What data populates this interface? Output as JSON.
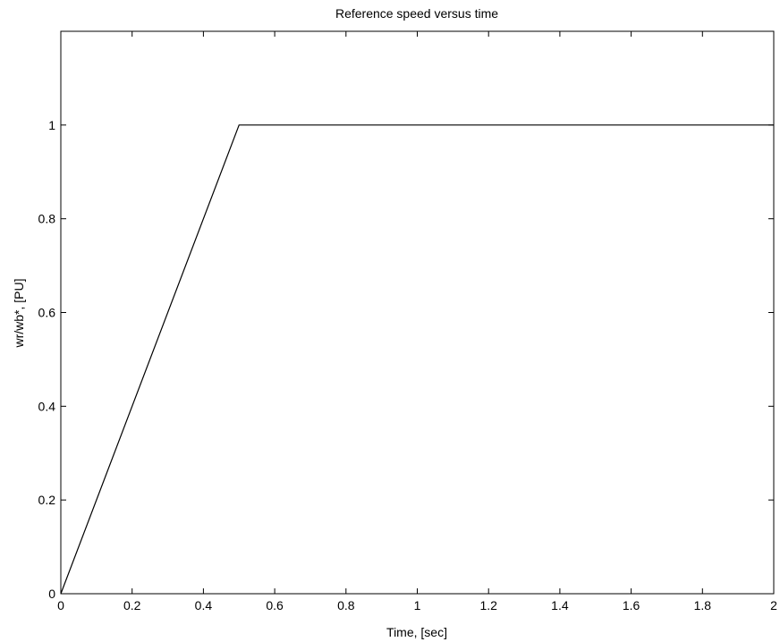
{
  "chart_data": {
    "type": "line",
    "title": "Reference speed versus time",
    "xlabel": "Time, [sec]",
    "ylabel": "wr/wb*, [PU]",
    "xlim": [
      0,
      2
    ],
    "ylim": [
      0,
      1.2
    ],
    "xticks": [
      0,
      0.2,
      0.4,
      0.6,
      0.8,
      1,
      1.2,
      1.4,
      1.6,
      1.8,
      2
    ],
    "xtick_labels": [
      "0",
      "0.2",
      "0.4",
      "0.6",
      "0.8",
      "1",
      "1.2",
      "1.4",
      "1.6",
      "1.8",
      "2"
    ],
    "yticks": [
      0,
      0.2,
      0.4,
      0.6,
      0.8,
      1
    ],
    "ytick_labels": [
      "0",
      "0.2",
      "0.4",
      "0.6",
      "0.8",
      "1"
    ],
    "grid": false,
    "series": [
      {
        "x": [
          0,
          0.5,
          2
        ],
        "y": [
          0,
          1,
          1
        ],
        "color": "#000000"
      }
    ]
  }
}
